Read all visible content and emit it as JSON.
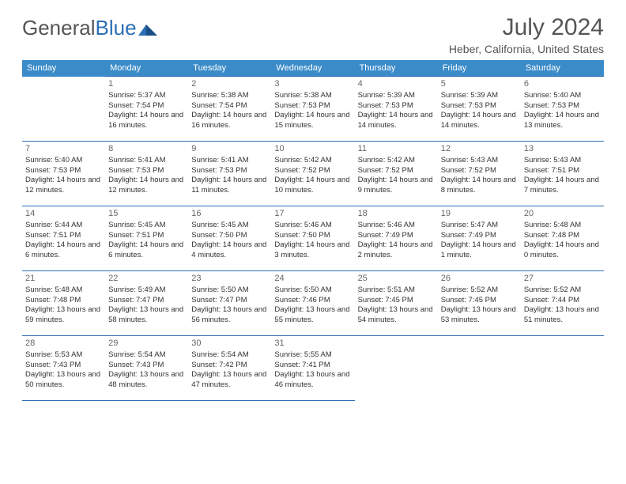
{
  "brand": {
    "part1": "General",
    "part2": "Blue"
  },
  "title": "July 2024",
  "location": "Heber, California, United States",
  "colors": {
    "header_bg": "#3b8bc9",
    "header_text": "#ffffff",
    "cell_border": "#2d6fb5",
    "text": "#333333",
    "title_text": "#555555",
    "logo_blue": "#2d6fb5",
    "background": "#ffffff"
  },
  "fonts": {
    "title_size_pt": 30,
    "location_size_pt": 14,
    "header_size_pt": 11,
    "cell_size_pt": 9.5,
    "daynum_size_pt": 11
  },
  "calendar": {
    "type": "table",
    "columns": [
      "Sunday",
      "Monday",
      "Tuesday",
      "Wednesday",
      "Thursday",
      "Friday",
      "Saturday"
    ],
    "weeks": [
      [
        null,
        {
          "day": "1",
          "sunrise": "5:37 AM",
          "sunset": "7:54 PM",
          "daylight": "14 hours and 16 minutes."
        },
        {
          "day": "2",
          "sunrise": "5:38 AM",
          "sunset": "7:54 PM",
          "daylight": "14 hours and 16 minutes."
        },
        {
          "day": "3",
          "sunrise": "5:38 AM",
          "sunset": "7:53 PM",
          "daylight": "14 hours and 15 minutes."
        },
        {
          "day": "4",
          "sunrise": "5:39 AM",
          "sunset": "7:53 PM",
          "daylight": "14 hours and 14 minutes."
        },
        {
          "day": "5",
          "sunrise": "5:39 AM",
          "sunset": "7:53 PM",
          "daylight": "14 hours and 14 minutes."
        },
        {
          "day": "6",
          "sunrise": "5:40 AM",
          "sunset": "7:53 PM",
          "daylight": "14 hours and 13 minutes."
        }
      ],
      [
        {
          "day": "7",
          "sunrise": "5:40 AM",
          "sunset": "7:53 PM",
          "daylight": "14 hours and 12 minutes."
        },
        {
          "day": "8",
          "sunrise": "5:41 AM",
          "sunset": "7:53 PM",
          "daylight": "14 hours and 12 minutes."
        },
        {
          "day": "9",
          "sunrise": "5:41 AM",
          "sunset": "7:53 PM",
          "daylight": "14 hours and 11 minutes."
        },
        {
          "day": "10",
          "sunrise": "5:42 AM",
          "sunset": "7:52 PM",
          "daylight": "14 hours and 10 minutes."
        },
        {
          "day": "11",
          "sunrise": "5:42 AM",
          "sunset": "7:52 PM",
          "daylight": "14 hours and 9 minutes."
        },
        {
          "day": "12",
          "sunrise": "5:43 AM",
          "sunset": "7:52 PM",
          "daylight": "14 hours and 8 minutes."
        },
        {
          "day": "13",
          "sunrise": "5:43 AM",
          "sunset": "7:51 PM",
          "daylight": "14 hours and 7 minutes."
        }
      ],
      [
        {
          "day": "14",
          "sunrise": "5:44 AM",
          "sunset": "7:51 PM",
          "daylight": "14 hours and 6 minutes."
        },
        {
          "day": "15",
          "sunrise": "5:45 AM",
          "sunset": "7:51 PM",
          "daylight": "14 hours and 6 minutes."
        },
        {
          "day": "16",
          "sunrise": "5:45 AM",
          "sunset": "7:50 PM",
          "daylight": "14 hours and 4 minutes."
        },
        {
          "day": "17",
          "sunrise": "5:46 AM",
          "sunset": "7:50 PM",
          "daylight": "14 hours and 3 minutes."
        },
        {
          "day": "18",
          "sunrise": "5:46 AM",
          "sunset": "7:49 PM",
          "daylight": "14 hours and 2 minutes."
        },
        {
          "day": "19",
          "sunrise": "5:47 AM",
          "sunset": "7:49 PM",
          "daylight": "14 hours and 1 minute."
        },
        {
          "day": "20",
          "sunrise": "5:48 AM",
          "sunset": "7:48 PM",
          "daylight": "14 hours and 0 minutes."
        }
      ],
      [
        {
          "day": "21",
          "sunrise": "5:48 AM",
          "sunset": "7:48 PM",
          "daylight": "13 hours and 59 minutes."
        },
        {
          "day": "22",
          "sunrise": "5:49 AM",
          "sunset": "7:47 PM",
          "daylight": "13 hours and 58 minutes."
        },
        {
          "day": "23",
          "sunrise": "5:50 AM",
          "sunset": "7:47 PM",
          "daylight": "13 hours and 56 minutes."
        },
        {
          "day": "24",
          "sunrise": "5:50 AM",
          "sunset": "7:46 PM",
          "daylight": "13 hours and 55 minutes."
        },
        {
          "day": "25",
          "sunrise": "5:51 AM",
          "sunset": "7:45 PM",
          "daylight": "13 hours and 54 minutes."
        },
        {
          "day": "26",
          "sunrise": "5:52 AM",
          "sunset": "7:45 PM",
          "daylight": "13 hours and 53 minutes."
        },
        {
          "day": "27",
          "sunrise": "5:52 AM",
          "sunset": "7:44 PM",
          "daylight": "13 hours and 51 minutes."
        }
      ],
      [
        {
          "day": "28",
          "sunrise": "5:53 AM",
          "sunset": "7:43 PM",
          "daylight": "13 hours and 50 minutes."
        },
        {
          "day": "29",
          "sunrise": "5:54 AM",
          "sunset": "7:43 PM",
          "daylight": "13 hours and 48 minutes."
        },
        {
          "day": "30",
          "sunrise": "5:54 AM",
          "sunset": "7:42 PM",
          "daylight": "13 hours and 47 minutes."
        },
        {
          "day": "31",
          "sunrise": "5:55 AM",
          "sunset": "7:41 PM",
          "daylight": "13 hours and 46 minutes."
        },
        null,
        null,
        null
      ]
    ],
    "labels": {
      "sunrise": "Sunrise:",
      "sunset": "Sunset:",
      "daylight": "Daylight:"
    }
  }
}
